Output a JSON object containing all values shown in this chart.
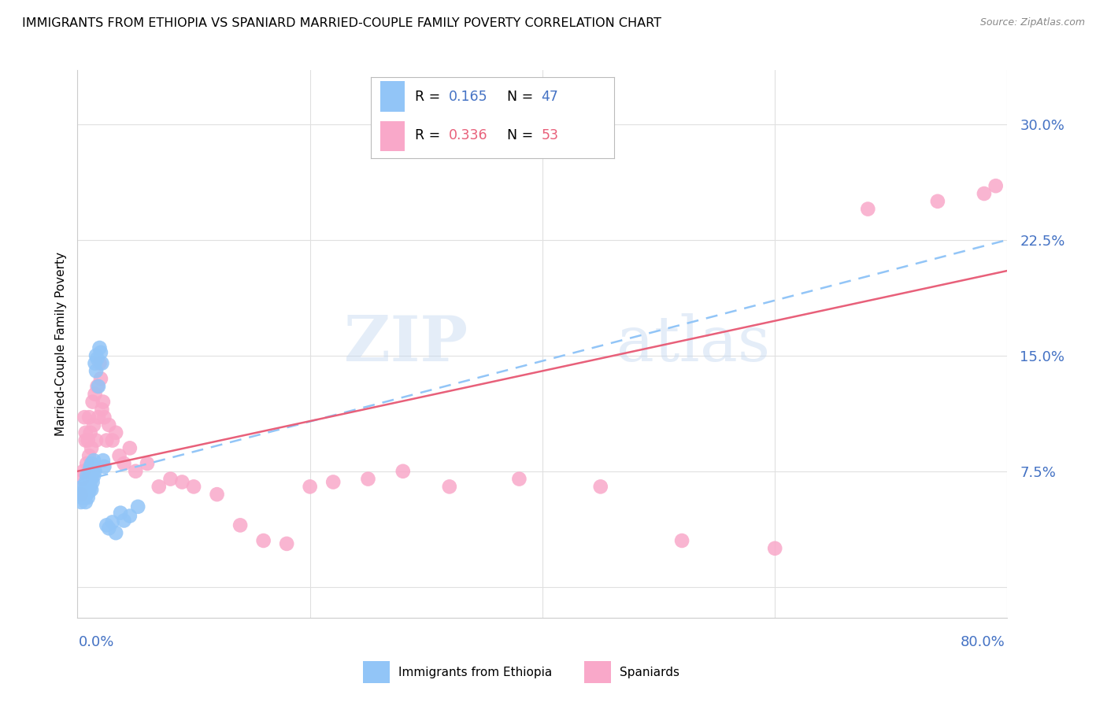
{
  "title": "IMMIGRANTS FROM ETHIOPIA VS SPANIARD MARRIED-COUPLE FAMILY POVERTY CORRELATION CHART",
  "source": "Source: ZipAtlas.com",
  "ylabel": "Married-Couple Family Poverty",
  "yticks": [
    0.0,
    0.075,
    0.15,
    0.225,
    0.3
  ],
  "ytick_labels": [
    "",
    "7.5%",
    "15.0%",
    "22.5%",
    "30.0%"
  ],
  "xlim": [
    0.0,
    0.8
  ],
  "ylim": [
    -0.02,
    0.335
  ],
  "watermark_line1": "ZIP",
  "watermark_line2": "atlas",
  "color_ethiopia": "#92C5F7",
  "color_spaniard": "#F9A8C9",
  "line_color_ethiopia": "#92C5F7",
  "line_color_spaniard": "#E8607A",
  "ethiopia_scatter_x": [
    0.003,
    0.004,
    0.005,
    0.005,
    0.006,
    0.006,
    0.007,
    0.007,
    0.007,
    0.008,
    0.008,
    0.008,
    0.009,
    0.009,
    0.009,
    0.01,
    0.01,
    0.01,
    0.011,
    0.011,
    0.011,
    0.012,
    0.012,
    0.012,
    0.013,
    0.013,
    0.014,
    0.014,
    0.015,
    0.015,
    0.016,
    0.016,
    0.017,
    0.018,
    0.019,
    0.02,
    0.021,
    0.022,
    0.023,
    0.025,
    0.027,
    0.03,
    0.033,
    0.037,
    0.04,
    0.045,
    0.052
  ],
  "ethiopia_scatter_y": [
    0.055,
    0.058,
    0.06,
    0.065,
    0.058,
    0.063,
    0.055,
    0.062,
    0.068,
    0.06,
    0.065,
    0.072,
    0.058,
    0.065,
    0.07,
    0.062,
    0.068,
    0.075,
    0.065,
    0.072,
    0.078,
    0.063,
    0.07,
    0.08,
    0.068,
    0.075,
    0.072,
    0.082,
    0.075,
    0.145,
    0.14,
    0.15,
    0.148,
    0.13,
    0.155,
    0.152,
    0.145,
    0.082,
    0.078,
    0.04,
    0.038,
    0.042,
    0.035,
    0.048,
    0.043,
    0.046,
    0.052
  ],
  "spaniard_scatter_x": [
    0.003,
    0.004,
    0.005,
    0.006,
    0.007,
    0.007,
    0.008,
    0.009,
    0.01,
    0.01,
    0.011,
    0.012,
    0.013,
    0.014,
    0.015,
    0.016,
    0.017,
    0.018,
    0.019,
    0.02,
    0.021,
    0.022,
    0.023,
    0.025,
    0.027,
    0.03,
    0.033,
    0.036,
    0.04,
    0.045,
    0.05,
    0.06,
    0.07,
    0.08,
    0.09,
    0.1,
    0.12,
    0.14,
    0.16,
    0.18,
    0.2,
    0.22,
    0.25,
    0.28,
    0.32,
    0.38,
    0.45,
    0.52,
    0.6,
    0.68,
    0.74,
    0.78,
    0.79
  ],
  "spaniard_scatter_y": [
    0.06,
    0.07,
    0.075,
    0.11,
    0.095,
    0.1,
    0.08,
    0.095,
    0.085,
    0.11,
    0.1,
    0.09,
    0.12,
    0.105,
    0.125,
    0.095,
    0.13,
    0.11,
    0.145,
    0.135,
    0.115,
    0.12,
    0.11,
    0.095,
    0.105,
    0.095,
    0.1,
    0.085,
    0.08,
    0.09,
    0.075,
    0.08,
    0.065,
    0.07,
    0.068,
    0.065,
    0.06,
    0.04,
    0.03,
    0.028,
    0.065,
    0.068,
    0.07,
    0.075,
    0.065,
    0.07,
    0.065,
    0.03,
    0.025,
    0.245,
    0.25,
    0.255,
    0.26
  ],
  "ethiopia_trend_x": [
    0.0,
    0.8
  ],
  "ethiopia_trend_y": [
    0.068,
    0.225
  ],
  "spaniard_trend_x": [
    0.0,
    0.8
  ],
  "spaniard_trend_y": [
    0.075,
    0.205
  ],
  "background_color": "#ffffff",
  "grid_color": "#e0e0e0",
  "tick_color": "#4472c4",
  "spaniard_label_color": "#E8607A"
}
